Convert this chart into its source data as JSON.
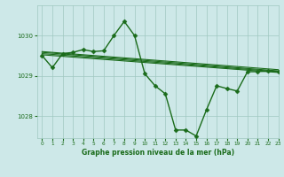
{
  "title": "Graphe pression niveau de la mer (hPa)",
  "background_color": "#cde8e8",
  "grid_color": "#a0c8c0",
  "line_color": "#1a6b1a",
  "marker_color": "#1a6b1a",
  "xlim": [
    -0.5,
    23
  ],
  "ylim": [
    1027.45,
    1030.75
  ],
  "yticks": [
    1028,
    1029,
    1030
  ],
  "xticks": [
    0,
    1,
    2,
    3,
    4,
    5,
    6,
    7,
    8,
    9,
    10,
    11,
    12,
    13,
    14,
    15,
    16,
    17,
    18,
    19,
    20,
    21,
    22,
    23
  ],
  "series": [
    {
      "x": [
        0,
        1,
        2,
        3,
        4,
        5,
        6,
        7,
        8,
        9,
        10,
        11,
        12,
        13,
        14,
        15,
        16,
        17,
        18,
        19,
        20,
        21,
        22,
        23
      ],
      "y": [
        1029.5,
        1029.2,
        1029.55,
        1029.58,
        1029.65,
        1029.6,
        1029.62,
        1030.0,
        1030.35,
        1030.0,
        1029.05,
        1028.75,
        1028.55,
        1027.65,
        1027.65,
        1027.5,
        1028.15,
        1028.75,
        1028.68,
        1028.62,
        1029.1,
        1029.1,
        1029.12,
        1029.1
      ],
      "marker": "D",
      "markersize": 2.5,
      "linewidth": 1.0
    },
    {
      "x": [
        0,
        23
      ],
      "y": [
        1029.6,
        1029.15
      ],
      "marker": null,
      "markersize": 0,
      "linewidth": 0.8
    },
    {
      "x": [
        0,
        23
      ],
      "y": [
        1029.58,
        1029.12
      ],
      "marker": null,
      "markersize": 0,
      "linewidth": 0.8
    },
    {
      "x": [
        0,
        23
      ],
      "y": [
        1029.55,
        1029.1
      ],
      "marker": null,
      "markersize": 0,
      "linewidth": 0.8
    },
    {
      "x": [
        0,
        23
      ],
      "y": [
        1029.52,
        1029.08
      ],
      "marker": null,
      "markersize": 0,
      "linewidth": 0.8
    }
  ]
}
